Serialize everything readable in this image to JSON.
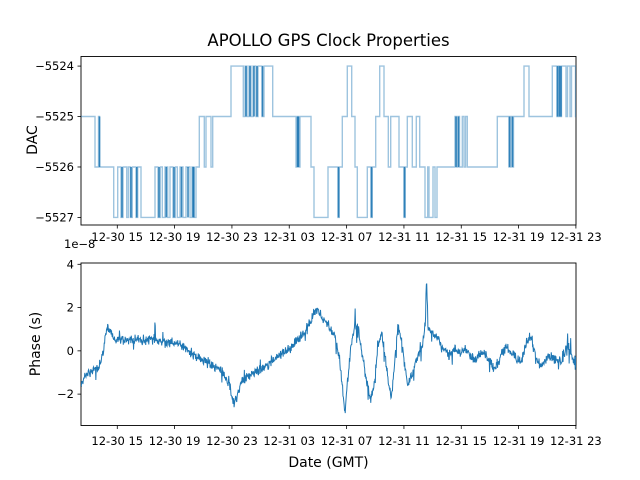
{
  "figure": {
    "title": "APOLLO GPS Clock Properties",
    "background": "#ffffff",
    "accent_color": "#1f77b4"
  },
  "chart_data": [
    {
      "id": "dac",
      "type": "line",
      "subtype": "step",
      "ylabel": "DAC",
      "line_color": "#1f77b4",
      "line_alpha": 0.35,
      "x_tick_labels": [
        "12-30 15",
        "12-30 19",
        "12-30 23",
        "12-31 03",
        "12-31 07",
        "12-31 11",
        "12-31 15",
        "12-31 19",
        "12-31 23"
      ],
      "x_tick_pos": [
        0.0733,
        0.1891,
        0.3049,
        0.4207,
        0.5366,
        0.6524,
        0.7682,
        0.884,
        0.9998
      ],
      "y_tick_labels": [
        "−5524",
        "−5525",
        "−5526",
        "−5527"
      ],
      "y_tick_values": [
        -5524,
        -5525,
        -5526,
        -5527
      ],
      "ylim": [
        -5527.15,
        -5523.81
      ],
      "grid": false,
      "steps": [
        [
          0.0,
          -5525
        ],
        [
          0.0283,
          -5526
        ],
        [
          0.0354,
          -5525
        ],
        [
          0.0374,
          -5526
        ],
        [
          0.0661,
          -5527
        ],
        [
          0.0741,
          -5526
        ],
        [
          0.0808,
          -5527
        ],
        [
          0.0848,
          -5526
        ],
        [
          0.0923,
          -5527
        ],
        [
          0.0956,
          -5526
        ],
        [
          0.0996,
          -5527
        ],
        [
          0.1036,
          -5526
        ],
        [
          0.1111,
          -5527
        ],
        [
          0.1145,
          -5526
        ],
        [
          0.1212,
          -5527
        ],
        [
          0.1495,
          -5526
        ],
        [
          0.1556,
          -5527
        ],
        [
          0.1602,
          -5526
        ],
        [
          0.1642,
          -5527
        ],
        [
          0.1697,
          -5526
        ],
        [
          0.1752,
          -5527
        ],
        [
          0.1798,
          -5526
        ],
        [
          0.1859,
          -5527
        ],
        [
          0.1905,
          -5526
        ],
        [
          0.1945,
          -5527
        ],
        [
          0.2,
          -5526
        ],
        [
          0.2061,
          -5527
        ],
        [
          0.2121,
          -5526
        ],
        [
          0.2202,
          -5527
        ],
        [
          0.2242,
          -5526
        ],
        [
          0.2283,
          -5527
        ],
        [
          0.2323,
          -5526
        ],
        [
          0.239,
          -5525
        ],
        [
          0.2491,
          -5526
        ],
        [
          0.2525,
          -5525
        ],
        [
          0.2626,
          -5526
        ],
        [
          0.2661,
          -5525
        ],
        [
          0.303,
          -5524
        ],
        [
          0.3279,
          -5525
        ],
        [
          0.3313,
          -5524
        ],
        [
          0.3354,
          -5525
        ],
        [
          0.3394,
          -5524
        ],
        [
          0.3434,
          -5525
        ],
        [
          0.3475,
          -5524
        ],
        [
          0.3535,
          -5525
        ],
        [
          0.3576,
          -5524
        ],
        [
          0.3657,
          -5525
        ],
        [
          0.3697,
          -5524
        ],
        [
          0.3873,
          -5525
        ],
        [
          0.4343,
          -5526
        ],
        [
          0.4374,
          -5525
        ],
        [
          0.4394,
          -5526
        ],
        [
          0.4424,
          -5525
        ],
        [
          0.4646,
          -5526
        ],
        [
          0.4707,
          -5527
        ],
        [
          0.499,
          -5526
        ],
        [
          0.5192,
          -5527
        ],
        [
          0.5218,
          -5526
        ],
        [
          0.5279,
          -5525
        ],
        [
          0.538,
          -5524
        ],
        [
          0.5469,
          -5525
        ],
        [
          0.5535,
          -5526
        ],
        [
          0.5582,
          -5527
        ],
        [
          0.5784,
          -5526
        ],
        [
          0.5859,
          -5527
        ],
        [
          0.5885,
          -5526
        ],
        [
          0.5954,
          -5525
        ],
        [
          0.6034,
          -5524
        ],
        [
          0.6121,
          -5525
        ],
        [
          0.6208,
          -5526
        ],
        [
          0.6257,
          -5525
        ],
        [
          0.6424,
          -5526
        ],
        [
          0.6525,
          -5527
        ],
        [
          0.6552,
          -5526
        ],
        [
          0.6592,
          -5525
        ],
        [
          0.6693,
          -5526
        ],
        [
          0.6774,
          -5525
        ],
        [
          0.6842,
          -5526
        ],
        [
          0.6949,
          -5527
        ],
        [
          0.7004,
          -5526
        ],
        [
          0.703,
          -5527
        ],
        [
          0.7111,
          -5526
        ],
        [
          0.7152,
          -5527
        ],
        [
          0.7192,
          -5526
        ],
        [
          0.7556,
          -5525
        ],
        [
          0.7586,
          -5526
        ],
        [
          0.7616,
          -5525
        ],
        [
          0.7646,
          -5526
        ],
        [
          0.7703,
          -5525
        ],
        [
          0.7737,
          -5526
        ],
        [
          0.777,
          -5525
        ],
        [
          0.7804,
          -5526
        ],
        [
          0.841,
          -5525
        ],
        [
          0.8646,
          -5526
        ],
        [
          0.8677,
          -5525
        ],
        [
          0.8707,
          -5526
        ],
        [
          0.8737,
          -5525
        ],
        [
          0.8949,
          -5524
        ],
        [
          0.9051,
          -5525
        ],
        [
          0.9521,
          -5524
        ],
        [
          0.9616,
          -5525
        ],
        [
          0.9646,
          -5524
        ],
        [
          0.9677,
          -5525
        ],
        [
          0.9707,
          -5524
        ],
        [
          0.9798,
          -5525
        ],
        [
          0.9828,
          -5524
        ],
        [
          0.9879,
          -5525
        ],
        [
          0.9909,
          -5524
        ],
        [
          0.999,
          -5525
        ]
      ],
      "overlap_marks": [
        [
          0.0374,
          -5525,
          -5526
        ],
        [
          0.0828,
          -5526,
          -5527
        ],
        [
          0.101,
          -5526,
          -5527
        ],
        [
          0.1127,
          -5526,
          -5527
        ],
        [
          0.1576,
          -5526,
          -5527
        ],
        [
          0.1723,
          -5526,
          -5527
        ],
        [
          0.1879,
          -5526,
          -5527
        ],
        [
          0.203,
          -5526,
          -5527
        ],
        [
          0.2162,
          -5526,
          -5527
        ],
        [
          0.2263,
          -5526,
          -5527
        ],
        [
          0.2279,
          -5526,
          -5527
        ],
        [
          0.3333,
          -5524,
          -5525
        ],
        [
          0.3414,
          -5524,
          -5525
        ],
        [
          0.3495,
          -5524,
          -5525
        ],
        [
          0.3556,
          -5524,
          -5525
        ],
        [
          0.3667,
          -5524,
          -5525
        ],
        [
          0.4374,
          -5525,
          -5526
        ],
        [
          0.4394,
          -5525,
          -5526
        ],
        [
          0.5202,
          -5526,
          -5527
        ],
        [
          0.5869,
          -5526,
          -5527
        ],
        [
          0.6535,
          -5526,
          -5527
        ],
        [
          0.7576,
          -5525,
          -5526
        ],
        [
          0.7626,
          -5525,
          -5526
        ],
        [
          0.8657,
          -5525,
          -5526
        ],
        [
          0.8717,
          -5525,
          -5526
        ],
        [
          0.9626,
          -5524,
          -5525
        ],
        [
          0.9667,
          -5524,
          -5525
        ],
        [
          0.9697,
          -5524,
          -5525
        ]
      ]
    },
    {
      "id": "phase",
      "type": "line",
      "xlabel": "Date (GMT)",
      "ylabel": "Phase (s)",
      "offset_text": "1e−8",
      "unit_scale": "1e-8",
      "line_color": "#1f77b4",
      "x_tick_labels": [
        "12-30 15",
        "12-30 19",
        "12-30 23",
        "12-31 03",
        "12-31 07",
        "12-31 11",
        "12-31 15",
        "12-31 19",
        "12-31 23"
      ],
      "x_tick_pos": [
        0.0733,
        0.1891,
        0.3049,
        0.4207,
        0.5366,
        0.6524,
        0.7682,
        0.884,
        0.9998
      ],
      "y_tick_labels": [
        "4",
        "2",
        "0",
        "−2"
      ],
      "y_tick_values": [
        4,
        2,
        0,
        -2
      ],
      "ylim": [
        -3.45,
        4.06
      ],
      "grid": false,
      "trend_points": [
        [
          0.0,
          -1.6
        ],
        [
          0.008,
          -1.2
        ],
        [
          0.02,
          -0.95
        ],
        [
          0.035,
          -0.8
        ],
        [
          0.045,
          -0.1
        ],
        [
          0.052,
          1.1
        ],
        [
          0.058,
          1.0
        ],
        [
          0.07,
          0.5
        ],
        [
          0.09,
          0.5
        ],
        [
          0.11,
          0.55
        ],
        [
          0.125,
          0.5
        ],
        [
          0.14,
          0.55
        ],
        [
          0.155,
          0.5
        ],
        [
          0.17,
          0.45
        ],
        [
          0.185,
          0.35
        ],
        [
          0.2,
          0.3
        ],
        [
          0.215,
          0.05
        ],
        [
          0.23,
          -0.25
        ],
        [
          0.25,
          -0.5
        ],
        [
          0.27,
          -0.7
        ],
        [
          0.285,
          -1.0
        ],
        [
          0.3,
          -1.6
        ],
        [
          0.308,
          -2.4
        ],
        [
          0.315,
          -2.2
        ],
        [
          0.325,
          -1.4
        ],
        [
          0.34,
          -1.1
        ],
        [
          0.36,
          -0.9
        ],
        [
          0.38,
          -0.6
        ],
        [
          0.4,
          -0.25
        ],
        [
          0.42,
          0.1
        ],
        [
          0.44,
          0.5
        ],
        [
          0.455,
          1.0
        ],
        [
          0.47,
          1.7
        ],
        [
          0.478,
          1.9
        ],
        [
          0.488,
          1.5
        ],
        [
          0.5,
          1.2
        ],
        [
          0.512,
          0.7
        ],
        [
          0.522,
          -0.3
        ],
        [
          0.528,
          -1.6
        ],
        [
          0.533,
          -2.9
        ],
        [
          0.538,
          -1.6
        ],
        [
          0.545,
          0.2
        ],
        [
          0.553,
          1.2
        ],
        [
          0.56,
          1.0
        ],
        [
          0.568,
          -0.2
        ],
        [
          0.576,
          -1.3
        ],
        [
          0.585,
          -2.2
        ],
        [
          0.592,
          -1.6
        ],
        [
          0.6,
          0.2
        ],
        [
          0.607,
          0.8
        ],
        [
          0.613,
          0.0
        ],
        [
          0.62,
          -1.3
        ],
        [
          0.627,
          -2.2
        ],
        [
          0.633,
          -0.8
        ],
        [
          0.64,
          1.1
        ],
        [
          0.646,
          0.8
        ],
        [
          0.653,
          -0.5
        ],
        [
          0.66,
          -1.6
        ],
        [
          0.667,
          -1.2
        ],
        [
          0.675,
          -0.6
        ],
        [
          0.683,
          -0.1
        ],
        [
          0.69,
          0.3
        ],
        [
          0.6955,
          1.0
        ],
        [
          0.698,
          3.5
        ],
        [
          0.701,
          1.1
        ],
        [
          0.708,
          0.8
        ],
        [
          0.715,
          0.7
        ],
        [
          0.725,
          0.4
        ],
        [
          0.735,
          0.0
        ],
        [
          0.745,
          -0.2
        ],
        [
          0.755,
          0.1
        ],
        [
          0.765,
          -0.1
        ],
        [
          0.775,
          0.1
        ],
        [
          0.785,
          -0.2
        ],
        [
          0.795,
          -0.4
        ],
        [
          0.805,
          -0.2
        ],
        [
          0.815,
          -0.1
        ],
        [
          0.825,
          -0.4
        ],
        [
          0.835,
          -0.8
        ],
        [
          0.843,
          -0.5
        ],
        [
          0.852,
          0.0
        ],
        [
          0.86,
          0.2
        ],
        [
          0.87,
          -0.1
        ],
        [
          0.88,
          -0.4
        ],
        [
          0.89,
          -0.5
        ],
        [
          0.9,
          0.4
        ],
        [
          0.908,
          0.7
        ],
        [
          0.916,
          0.0
        ],
        [
          0.925,
          -0.6
        ],
        [
          0.933,
          -0.7
        ],
        [
          0.94,
          -0.4
        ],
        [
          0.95,
          -0.3
        ],
        [
          0.958,
          -0.35
        ],
        [
          0.966,
          -0.5
        ],
        [
          0.974,
          -0.4
        ],
        [
          0.982,
          0.3
        ],
        [
          0.99,
          -0.1
        ],
        [
          1.0,
          -0.8
        ]
      ],
      "noise_amp": 0.27,
      "noise_seed": 20241231
    }
  ]
}
